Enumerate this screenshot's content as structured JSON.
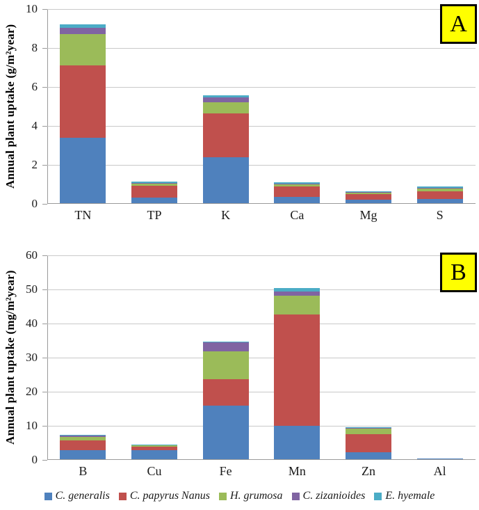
{
  "chart_data": [
    {
      "type": "bar",
      "stacked": true,
      "panel_label": "A",
      "ylabel": "Annual plant uptake (g/m²year)",
      "xlabel": "",
      "ylim": [
        0,
        10
      ],
      "yticks": [
        0,
        2,
        4,
        6,
        8,
        10
      ],
      "grid": true,
      "legend_position": "bottom-shared",
      "categories": [
        "TN",
        "TP",
        "K",
        "Ca",
        "Mg",
        "S"
      ],
      "series": [
        {
          "name": "C. generalis",
          "color": "#4F81BD",
          "values": [
            3.4,
            0.32,
            2.4,
            0.35,
            0.22,
            0.25
          ]
        },
        {
          "name": "C. papyrus Nanus",
          "color": "#C0504D",
          "values": [
            3.7,
            0.6,
            2.25,
            0.53,
            0.28,
            0.4
          ]
        },
        {
          "name": "H. grumosa",
          "color": "#9BBB59",
          "values": [
            1.6,
            0.13,
            0.55,
            0.14,
            0.1,
            0.15
          ]
        },
        {
          "name": "C. zizanioides",
          "color": "#8064A2",
          "values": [
            0.35,
            0.03,
            0.25,
            0.03,
            0.02,
            0.03
          ]
        },
        {
          "name": "E. hyemale",
          "color": "#4BACC6",
          "values": [
            0.15,
            0.05,
            0.12,
            0.05,
            0.03,
            0.07
          ]
        }
      ]
    },
    {
      "type": "bar",
      "stacked": true,
      "panel_label": "B",
      "ylabel": "Annual plant uptake (mg/m²year)",
      "xlabel": "",
      "ylim": [
        0,
        60
      ],
      "yticks": [
        0,
        10,
        20,
        30,
        40,
        50,
        60
      ],
      "grid": true,
      "legend_position": "bottom-shared",
      "categories": [
        "B",
        "Cu",
        "Fe",
        "Mn",
        "Zn",
        "Al"
      ],
      "series": [
        {
          "name": "C. generalis",
          "color": "#4F81BD",
          "values": [
            2.9,
            2.9,
            16,
            10,
            2.3,
            0.5
          ]
        },
        {
          "name": "C. papyrus Nanus",
          "color": "#C0504D",
          "values": [
            2.9,
            0.9,
            7.7,
            32.6,
            5.2,
            0
          ]
        },
        {
          "name": "H. grumosa",
          "color": "#9BBB59",
          "values": [
            1.0,
            0.6,
            8.1,
            5.5,
            1.9,
            0
          ]
        },
        {
          "name": "C. zizanioides",
          "color": "#8064A2",
          "values": [
            0.35,
            0.05,
            2.6,
            1.3,
            0.05,
            0
          ]
        },
        {
          "name": "E. hyemale",
          "color": "#4BACC6",
          "values": [
            0.2,
            0.05,
            0.2,
            1.1,
            0.05,
            0
          ]
        }
      ]
    }
  ],
  "legend": {
    "items": [
      "C. generalis",
      "C. papyrus Nanus",
      "H. grumosa",
      "C. zizanioides",
      "E. hyemale"
    ]
  },
  "colors": {
    "series_blue": "#4F81BD",
    "series_red": "#C0504D",
    "series_green": "#9BBB59",
    "series_purple": "#8064A2",
    "series_cyan": "#4BACC6",
    "badge_background": "#FFFF00",
    "gridline": "#C9C9C9",
    "axis": "#9A9A9A"
  }
}
